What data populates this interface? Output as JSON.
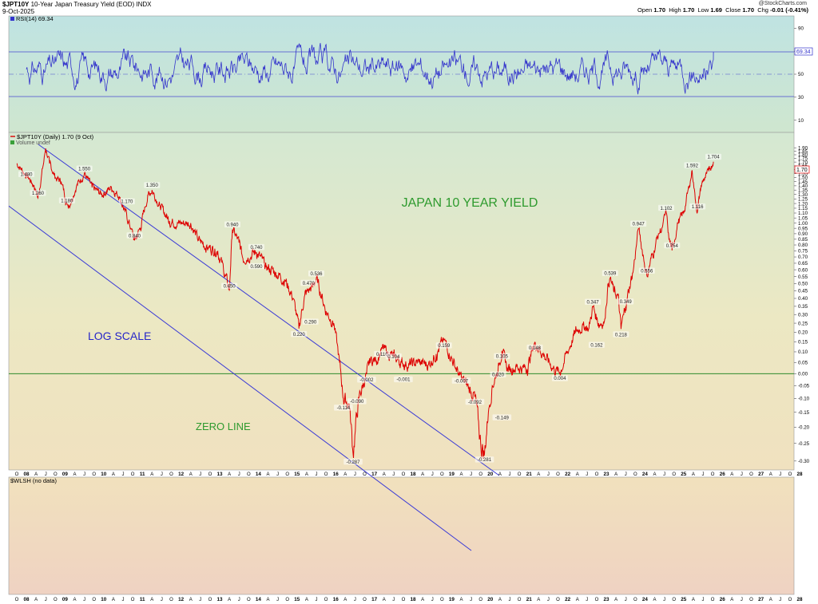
{
  "header": {
    "symbol": "$JPT10Y",
    "name": "10-Year Japan Treasury Yield (EOD)",
    "exchange": "INDX",
    "date": "9-Oct-2025",
    "brand": "@StockCharts.com",
    "quote": {
      "open_label": "Open",
      "open": "1.70",
      "high_label": "High",
      "high": "1.70",
      "low_label": "Low",
      "low": "1.69",
      "close_label": "Close",
      "close": "1.70",
      "chg_label": "Chg",
      "chg": "-0.01 (-0.41%)"
    }
  },
  "rsi_panel": {
    "label": "RSI(14) 69.34",
    "value_tag": "69.34",
    "ticks": [
      90,
      70,
      50,
      30,
      10
    ],
    "overbought": 70,
    "oversold": 30
  },
  "price_panel": {
    "legend": "$JPT10Y (Daily) 1.70 (9 Oct)",
    "volume_legend": "Volume undef",
    "last_tag": "1.70",
    "annotations": {
      "title": "JAPAN 10 YEAR YIELD",
      "log_scale": "LOG SCALE",
      "zero_line": "ZERO LINE"
    }
  },
  "bottom_panel": {
    "label": "$WLSH (no data)"
  },
  "colors": {
    "price_line": "#dd0000",
    "rsi_line": "#3333cc",
    "channel_line": "#3a3ad6",
    "zero_line": "#2e8b2e",
    "annotation_green": "#2e9a2e",
    "annotation_blue": "#2626c8"
  },
  "chart_data": {
    "type": "line",
    "title": "JAPAN 10 YEAR YIELD",
    "yscale": "log (offset)",
    "ylim": [
      -0.3,
      1.9
    ],
    "y_ticks": [
      "1.90",
      "1.85",
      "1.80",
      "1.75",
      "1.70",
      "1.65",
      "1.60",
      "1.55",
      "1.50",
      "1.45",
      "1.40",
      "1.35",
      "1.30",
      "1.25",
      "1.20",
      "1.15",
      "1.10",
      "1.05",
      "1.00",
      "0.95",
      "0.90",
      "0.85",
      "0.80",
      "0.75",
      "0.70",
      "0.65",
      "0.60",
      "0.55",
      "0.50",
      "0.45",
      "0.40",
      "0.35",
      "0.30",
      "0.25",
      "0.20",
      "0.15",
      "0.10",
      "0.05",
      "0.00",
      "-0.05",
      "-0.10",
      "-0.15",
      "-0.20",
      "-0.25",
      "-0.30"
    ],
    "x_years": [
      "08",
      "09",
      "10",
      "11",
      "12",
      "13",
      "14",
      "15",
      "16",
      "17",
      "18",
      "19",
      "20",
      "21",
      "22",
      "23",
      "24",
      "25",
      "26",
      "27",
      "28"
    ],
    "x_month_letters": [
      "A",
      "J",
      "O"
    ],
    "x_first_label": "O",
    "series": [
      {
        "values_by_time": [
          [
            2007.75,
            1.68
          ],
          [
            2008.05,
            1.5
          ],
          [
            2008.2,
            1.4
          ],
          [
            2008.3,
            1.26
          ],
          [
            2008.45,
            1.7
          ],
          [
            2008.5,
            1.89
          ],
          [
            2008.6,
            1.68
          ],
          [
            2008.75,
            1.5
          ],
          [
            2008.9,
            1.45
          ],
          [
            2009.05,
            1.2
          ],
          [
            2009.1,
            1.18
          ],
          [
            2009.3,
            1.4
          ],
          [
            2009.5,
            1.55
          ],
          [
            2009.7,
            1.38
          ],
          [
            2009.95,
            1.3
          ],
          [
            2010.2,
            1.38
          ],
          [
            2010.4,
            1.28
          ],
          [
            2010.55,
            1.12
          ],
          [
            2010.7,
            0.95
          ],
          [
            2010.8,
            0.84
          ],
          [
            2010.95,
            0.95
          ],
          [
            2011.15,
            1.3
          ],
          [
            2011.25,
            1.35
          ],
          [
            2011.45,
            1.18
          ],
          [
            2011.7,
            1.02
          ],
          [
            2011.95,
            1.0
          ],
          [
            2012.25,
            1.0
          ],
          [
            2012.45,
            0.84
          ],
          [
            2012.7,
            0.78
          ],
          [
            2012.95,
            0.75
          ],
          [
            2013.1,
            0.6
          ],
          [
            2013.25,
            0.45
          ],
          [
            2013.33,
            0.94
          ],
          [
            2013.5,
            0.82
          ],
          [
            2013.6,
            0.69
          ],
          [
            2013.95,
            0.74
          ],
          [
            2014.2,
            0.62
          ],
          [
            2014.45,
            0.58
          ],
          [
            2014.7,
            0.52
          ],
          [
            2014.9,
            0.4
          ],
          [
            2015.05,
            0.22
          ],
          [
            2015.2,
            0.42
          ],
          [
            2015.4,
            0.48
          ],
          [
            2015.5,
            0.536
          ],
          [
            2015.75,
            0.32
          ],
          [
            2015.95,
            0.25
          ],
          [
            2016.1,
            0.05
          ],
          [
            2016.2,
            -0.1
          ],
          [
            2016.35,
            -0.12
          ],
          [
            2016.45,
            -0.28
          ],
          [
            2016.6,
            -0.1
          ],
          [
            2016.8,
            -0.002
          ],
          [
            2016.9,
            0.06
          ],
          [
            2017.05,
            0.06
          ],
          [
            2017.2,
            0.116
          ],
          [
            2017.5,
            0.075
          ],
          [
            2017.7,
            0.05
          ],
          [
            2017.9,
            0.04
          ],
          [
            2018.15,
            0.05
          ],
          [
            2018.4,
            0.04
          ],
          [
            2018.6,
            0.09
          ],
          [
            2018.8,
            0.159
          ],
          [
            2019.0,
            0.07
          ],
          [
            2019.2,
            -0.007
          ],
          [
            2019.4,
            -0.05
          ],
          [
            2019.6,
            -0.092
          ],
          [
            2019.75,
            -0.25
          ],
          [
            2019.85,
            -0.281
          ],
          [
            2019.95,
            -0.15
          ],
          [
            2020.05,
            -0.05
          ],
          [
            2020.2,
            0.02
          ],
          [
            2020.3,
            0.105
          ],
          [
            2020.45,
            0.02
          ],
          [
            2020.7,
            0.03
          ],
          [
            2020.95,
            0.02
          ],
          [
            2021.15,
            0.148
          ],
          [
            2021.4,
            0.08
          ],
          [
            2021.65,
            0.02
          ],
          [
            2021.8,
            0.004
          ],
          [
            2022.0,
            0.1
          ],
          [
            2022.2,
            0.2
          ],
          [
            2022.4,
            0.24
          ],
          [
            2022.55,
            0.22
          ],
          [
            2022.65,
            0.347
          ],
          [
            2022.8,
            0.25
          ],
          [
            2022.95,
            0.26
          ],
          [
            2023.05,
            0.5
          ],
          [
            2023.1,
            0.539
          ],
          [
            2023.2,
            0.44
          ],
          [
            2023.3,
            0.42
          ],
          [
            2023.38,
            0.218
          ],
          [
            2023.45,
            0.3
          ],
          [
            2023.5,
            0.349
          ],
          [
            2023.7,
            0.6
          ],
          [
            2023.78,
            0.8
          ],
          [
            2023.83,
            0.947
          ],
          [
            2023.95,
            0.72
          ],
          [
            2024.05,
            0.556
          ],
          [
            2024.2,
            0.72
          ],
          [
            2024.35,
            0.9
          ],
          [
            2024.45,
            0.96
          ],
          [
            2024.55,
            1.102
          ],
          [
            2024.62,
            0.85
          ],
          [
            2024.7,
            0.754
          ],
          [
            2024.85,
            1.0
          ],
          [
            2025.0,
            1.1
          ],
          [
            2025.15,
            1.4
          ],
          [
            2025.22,
            1.592
          ],
          [
            2025.3,
            1.25
          ],
          [
            2025.36,
            1.116
          ],
          [
            2025.45,
            1.4
          ],
          [
            2025.55,
            1.5
          ],
          [
            2025.65,
            1.58
          ],
          [
            2025.77,
            1.704
          ]
        ]
      }
    ],
    "data_labels": [
      {
        "t": 2008.0,
        "v": 1.48,
        "text": "1.480"
      },
      {
        "t": 2008.3,
        "v": 1.26,
        "text": "1.260"
      },
      {
        "t": 2009.05,
        "v": 1.18,
        "text": "1.180"
      },
      {
        "t": 2009.5,
        "v": 1.55,
        "text": "1.550"
      },
      {
        "t": 2010.6,
        "v": 1.17,
        "text": "1.170"
      },
      {
        "t": 2010.8,
        "v": 0.84,
        "text": "0.840"
      },
      {
        "t": 2011.25,
        "v": 1.35,
        "text": "1.350"
      },
      {
        "t": 2013.33,
        "v": 0.94,
        "text": "0.940"
      },
      {
        "t": 2013.25,
        "v": 0.45,
        "text": "0.450"
      },
      {
        "t": 2013.95,
        "v": 0.74,
        "text": "0.740"
      },
      {
        "t": 2013.95,
        "v": 0.59,
        "text": "0.590"
      },
      {
        "t": 2015.5,
        "v": 0.536,
        "text": "0.536"
      },
      {
        "t": 2015.3,
        "v": 0.47,
        "text": "0.470"
      },
      {
        "t": 2015.35,
        "v": 0.29,
        "text": "0.290"
      },
      {
        "t": 2015.05,
        "v": 0.22,
        "text": "0.220"
      },
      {
        "t": 2016.8,
        "v": -0.002,
        "text": "-0.002"
      },
      {
        "t": 2017.2,
        "v": 0.116,
        "text": "0.116"
      },
      {
        "t": 2017.5,
        "v": 0.104,
        "text": "0.104"
      },
      {
        "t": 2016.55,
        "v": -0.09,
        "text": "-0.090"
      },
      {
        "t": 2016.2,
        "v": -0.114,
        "text": "-0.114"
      },
      {
        "t": 2016.45,
        "v": -0.287,
        "text": "-0.287"
      },
      {
        "t": 2017.75,
        "v": -0.001,
        "text": "-0.001"
      },
      {
        "t": 2018.8,
        "v": 0.159,
        "text": "0.159"
      },
      {
        "t": 2019.25,
        "v": -0.007,
        "text": "-0.007"
      },
      {
        "t": 2019.6,
        "v": -0.092,
        "text": "-0.092"
      },
      {
        "t": 2019.85,
        "v": -0.281,
        "text": "-0.281"
      },
      {
        "t": 2020.3,
        "v": 0.105,
        "text": "0.105"
      },
      {
        "t": 2020.2,
        "v": 0.02,
        "text": "0.020"
      },
      {
        "t": 2020.3,
        "v": -0.149,
        "text": "-0.149"
      },
      {
        "t": 2021.15,
        "v": 0.148,
        "text": "0.148"
      },
      {
        "t": 2021.8,
        "v": 0.004,
        "text": "0.004"
      },
      {
        "t": 2022.65,
        "v": 0.347,
        "text": "0.347"
      },
      {
        "t": 2022.75,
        "v": 0.162,
        "text": "0.162"
      },
      {
        "t": 2023.1,
        "v": 0.539,
        "text": "0.539"
      },
      {
        "t": 2023.38,
        "v": 0.218,
        "text": "0.218"
      },
      {
        "t": 2023.5,
        "v": 0.349,
        "text": "0.349"
      },
      {
        "t": 2023.83,
        "v": 0.947,
        "text": "0.947"
      },
      {
        "t": 2024.05,
        "v": 0.556,
        "text": "0.556"
      },
      {
        "t": 2024.55,
        "v": 1.102,
        "text": "1.102"
      },
      {
        "t": 2024.7,
        "v": 0.754,
        "text": "0.754"
      },
      {
        "t": 2025.22,
        "v": 1.592,
        "text": "1.592"
      },
      {
        "t": 2025.36,
        "v": 1.116,
        "text": "1.116"
      },
      {
        "t": 2025.77,
        "v": 1.704,
        "text": "1.704"
      }
    ],
    "grid": false,
    "legend": "top-left"
  }
}
